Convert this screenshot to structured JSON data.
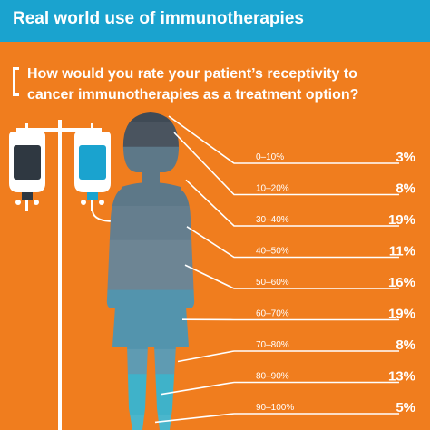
{
  "header": {
    "title": "Real world use of immunotherapies"
  },
  "question": {
    "line1": "How would you rate your patient’s receptivity to",
    "line2": "cancer immunotherapies as a treatment option?"
  },
  "colors": {
    "background": "#f07d1e",
    "header": "#1aa3cf",
    "figure_dark": "#3f4a55",
    "figure_slate": "#5d7888",
    "figure_blue": "#5394ad",
    "figure_teal": "#3fb2c9",
    "iv_bag_dark": "#2f3841",
    "iv_bag_teal": "#1aa3cf"
  },
  "illustration": {
    "woman": "woman-silhouette-icon",
    "iv_stand": "iv-drip-stand-icon",
    "bags": [
      "iv-bag-dark-icon",
      "iv-bag-teal-icon"
    ]
  },
  "chart_data": {
    "type": "bar",
    "title": "How would you rate your patient’s receptivity to cancer immunotherapies as a treatment option?",
    "categories": [
      "0–10%",
      "10–20%",
      "30–40%",
      "40–50%",
      "50–60%",
      "60–70%",
      "70–80%",
      "80–90%",
      "90–100%"
    ],
    "values": [
      3,
      8,
      19,
      11,
      16,
      19,
      8,
      13,
      5
    ],
    "value_labels": [
      "3%",
      "8%",
      "19%",
      "11%",
      "16%",
      "19%",
      "8%",
      "13%",
      "5%"
    ],
    "unit": "%",
    "xlabel": "",
    "ylabel": "",
    "grid": false,
    "legend": "none"
  }
}
